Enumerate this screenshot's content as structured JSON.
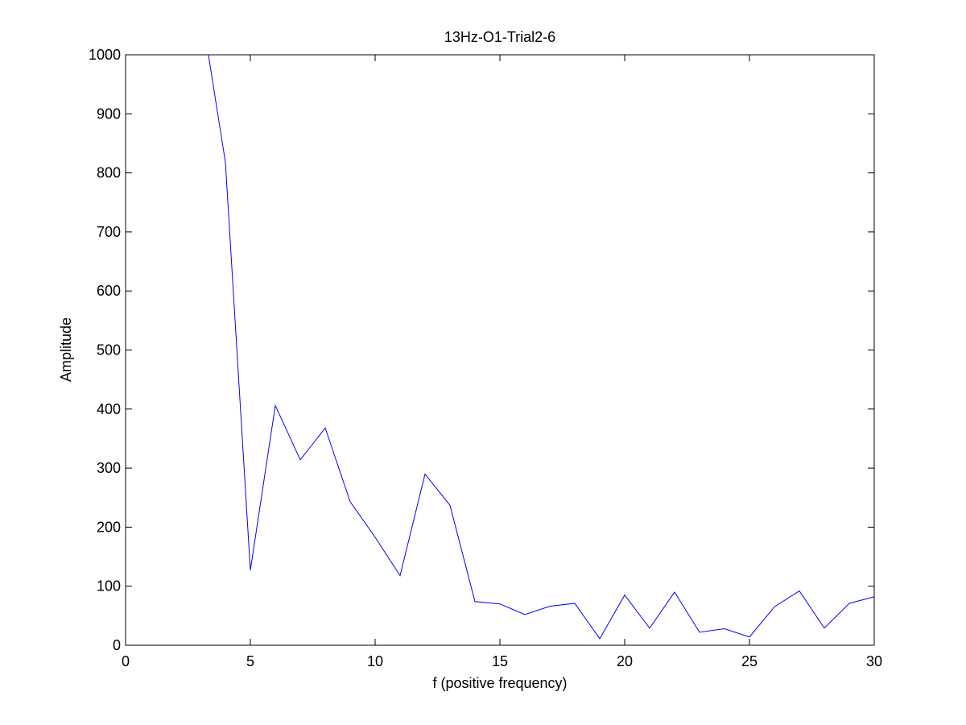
{
  "chart_data": {
    "type": "line",
    "title": "13Hz-O1-Trial2-6",
    "xlabel": "f (positive frequency)",
    "ylabel": "Amplitude",
    "xlim": [
      0,
      30
    ],
    "ylim": [
      0,
      1000
    ],
    "xticks": [
      0,
      5,
      10,
      15,
      20,
      25,
      30
    ],
    "yticks": [
      0,
      100,
      200,
      300,
      400,
      500,
      600,
      700,
      800,
      900,
      1000
    ],
    "grid": false,
    "series": [
      {
        "color": "#0000ff",
        "x": [
          3,
          4,
          5,
          6,
          7,
          8,
          9,
          10,
          11,
          12,
          13,
          14,
          15,
          16,
          17,
          18,
          19,
          20,
          21,
          22,
          23,
          24,
          25,
          26,
          27,
          28,
          29,
          30
        ],
        "y": [
          1085,
          818,
          127,
          406,
          314,
          368,
          243,
          183,
          118,
          290,
          237,
          74,
          70,
          52,
          66,
          71,
          11,
          85,
          29,
          90,
          22,
          28,
          14,
          65,
          92,
          29,
          71,
          82
        ]
      }
    ]
  }
}
